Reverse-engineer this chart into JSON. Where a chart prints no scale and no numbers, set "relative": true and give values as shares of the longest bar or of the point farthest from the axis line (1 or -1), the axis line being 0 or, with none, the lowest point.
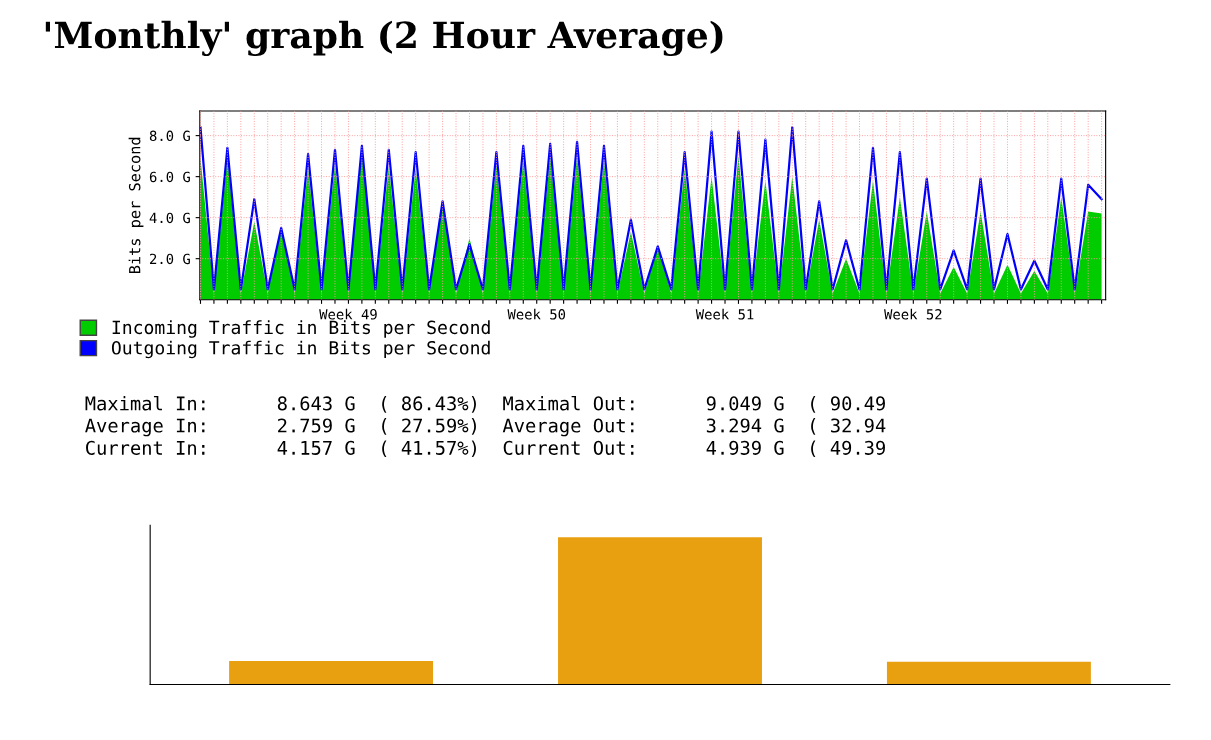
{
  "chart_data": [
    {
      "type": "area",
      "title": "'Monthly' graph (2 Hour Average)",
      "ylabel": "Bits per Second",
      "categories": [
        null,
        null,
        null,
        null,
        null,
        null,
        null,
        null,
        null,
        null,
        null,
        "Week 49",
        null,
        null,
        null,
        null,
        null,
        null,
        null,
        null,
        null,
        null,
        null,
        null,
        null,
        "Week 50",
        null,
        null,
        null,
        null,
        null,
        null,
        null,
        null,
        null,
        null,
        null,
        null,
        null,
        "Week 51",
        null,
        null,
        null,
        null,
        null,
        null,
        null,
        null,
        null,
        null,
        null,
        null,
        null,
        "Week 52",
        null,
        null,
        null,
        null,
        null,
        null,
        null,
        null,
        null,
        null,
        null,
        null,
        null,
        null
      ],
      "ylim": [
        0,
        9.2
      ],
      "yticks": [
        {
          "value": 2,
          "label": "2.0 G"
        },
        {
          "value": 4,
          "label": "4.0 G"
        },
        {
          "value": 6,
          "label": "6.0 G"
        },
        {
          "value": 8,
          "label": "8.0 G"
        }
      ],
      "grid": true,
      "legend": "bottom",
      "series": [
        {
          "name": "Incoming Traffic in Bits per Second",
          "type": "area",
          "color": "#00cc00",
          "values": [
            6.9,
            0.3,
            6.9,
            0.3,
            3.8,
            0.3,
            3.5,
            0.3,
            6.4,
            0.3,
            6.6,
            0.3,
            7.5,
            0.3,
            6.5,
            0.3,
            6.4,
            0.3,
            4.8,
            0.3,
            3.0,
            0.3,
            6.6,
            0.3,
            6.8,
            0.3,
            7.0,
            0.3,
            7.0,
            0.3,
            6.8,
            0.3,
            3.3,
            0.3,
            2.6,
            0.3,
            6.4,
            0.3,
            6.0,
            0.3,
            7.0,
            0.3,
            5.8,
            0.3,
            6.0,
            0.3,
            3.9,
            0.3,
            2.0,
            0.3,
            5.8,
            0.3,
            5.0,
            0.3,
            4.3,
            0.3,
            1.6,
            0.3,
            4.3,
            0.3,
            1.7,
            0.3,
            1.4,
            0.3,
            5.0,
            0.3,
            4.3,
            4.2
          ]
        },
        {
          "name": "Outgoing Traffic in Bits per Second",
          "type": "line",
          "color": "#0000ff",
          "values": [
            8.4,
            0.5,
            7.4,
            0.5,
            4.9,
            0.5,
            3.5,
            0.5,
            7.1,
            0.5,
            7.3,
            0.5,
            7.5,
            0.5,
            7.3,
            0.5,
            7.2,
            0.5,
            4.8,
            0.5,
            2.7,
            0.5,
            7.2,
            0.5,
            7.5,
            0.5,
            7.6,
            0.5,
            7.7,
            0.5,
            7.5,
            0.5,
            3.9,
            0.5,
            2.6,
            0.5,
            7.2,
            0.5,
            8.2,
            0.5,
            8.2,
            0.5,
            7.8,
            0.5,
            8.4,
            0.5,
            4.8,
            0.5,
            2.9,
            0.5,
            7.4,
            0.5,
            7.2,
            0.5,
            5.9,
            0.5,
            2.4,
            0.5,
            5.9,
            0.5,
            3.2,
            0.5,
            1.9,
            0.5,
            5.9,
            0.5,
            5.6,
            4.9
          ]
        }
      ],
      "annotations": [
        "Maximal In:      8.643 G  ( 86.43%)  Maximal Out:      9.049 G  ( 90.49",
        "Average In:      2.759 G  ( 27.59%)  Average Out:      3.294 G  ( 32.94",
        "Current In:      4.157 G  ( 41.57%)  Current Out:      4.939 G  ( 49.39"
      ]
    },
    {
      "type": "bar",
      "relative": true,
      "categories": [
        null,
        null,
        null
      ],
      "color": "#e8a010",
      "values": [
        0.16,
        1,
        0.155
      ]
    }
  ]
}
